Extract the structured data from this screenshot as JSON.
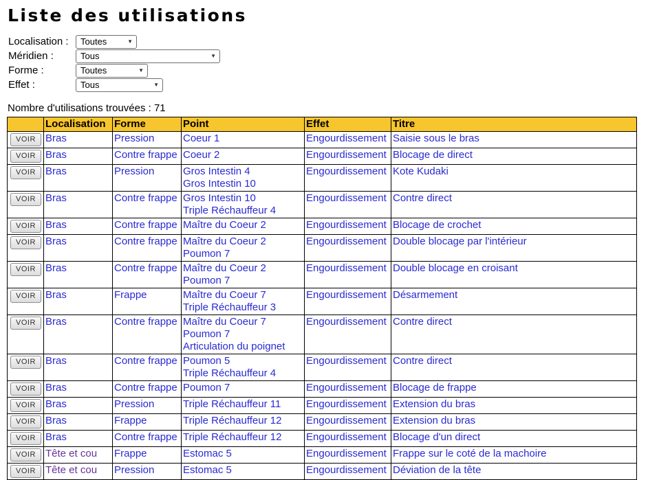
{
  "page": {
    "title": "Liste des utilisations"
  },
  "filters": [
    {
      "name": "localisation",
      "label": "Localisation :",
      "value": "Toutes"
    },
    {
      "name": "meridien",
      "label": "Méridien :",
      "value": "Tous"
    },
    {
      "name": "forme",
      "label": "Forme :",
      "value": "Toutes"
    },
    {
      "name": "effet",
      "label": "Effet :",
      "value": "Tous"
    }
  ],
  "results": {
    "count_label": "Nombre d'utilisations trouvées :",
    "count": "71"
  },
  "table": {
    "action_label": "VOIR",
    "headers": [
      "",
      "Localisation",
      "Forme",
      "Point",
      "Effet",
      "Titre"
    ],
    "rows": [
      {
        "localisation": "Bras",
        "forme": "Pression",
        "point": "Coeur 1",
        "effet": "Engourdissement",
        "titre": "Saisie sous le bras",
        "loc_visited": false
      },
      {
        "localisation": "Bras",
        "forme": "Contre frappe",
        "point": "Coeur 2",
        "effet": "Engourdissement",
        "titre": "Blocage de direct",
        "loc_visited": false
      },
      {
        "localisation": "Bras",
        "forme": "Pression",
        "point": "Gros Intestin 4\nGros Intestin 10",
        "effet": "Engourdissement",
        "titre": "Kote Kudaki",
        "loc_visited": false
      },
      {
        "localisation": "Bras",
        "forme": "Contre frappe",
        "point": "Gros Intestin 10\nTriple Réchauffeur 4",
        "effet": "Engourdissement",
        "titre": "Contre direct",
        "loc_visited": false
      },
      {
        "localisation": "Bras",
        "forme": "Contre frappe",
        "point": "Maître du Coeur 2",
        "effet": "Engourdissement",
        "titre": "Blocage de crochet",
        "loc_visited": false
      },
      {
        "localisation": "Bras",
        "forme": "Contre frappe",
        "point": "Maître du Coeur 2\nPoumon 7",
        "effet": "Engourdissement",
        "titre": "Double blocage par l'intérieur",
        "loc_visited": false
      },
      {
        "localisation": "Bras",
        "forme": "Contre frappe",
        "point": "Maître du Coeur 2\nPoumon 7",
        "effet": "Engourdissement",
        "titre": "Double blocage en croisant",
        "loc_visited": false
      },
      {
        "localisation": "Bras",
        "forme": "Frappe",
        "point": "Maître du Coeur 7\nTriple Réchauffeur 3",
        "effet": "Engourdissement",
        "titre": "Désarmement",
        "loc_visited": false
      },
      {
        "localisation": "Bras",
        "forme": "Contre frappe",
        "point": "Maître du Coeur 7\nPoumon 7\nArticulation du poignet",
        "effet": "Engourdissement",
        "titre": "Contre direct",
        "loc_visited": false
      },
      {
        "localisation": "Bras",
        "forme": "Contre frappe",
        "point": "Poumon 5\nTriple Réchauffeur 4",
        "effet": "Engourdissement",
        "titre": "Contre direct",
        "loc_visited": false
      },
      {
        "localisation": "Bras",
        "forme": "Contre frappe",
        "point": "Poumon 7",
        "effet": "Engourdissement",
        "titre": "Blocage de frappe",
        "loc_visited": false
      },
      {
        "localisation": "Bras",
        "forme": "Pression",
        "point": "Triple Réchauffeur 11",
        "effet": "Engourdissement",
        "titre": "Extension du bras",
        "loc_visited": false
      },
      {
        "localisation": "Bras",
        "forme": "Frappe",
        "point": "Triple Réchauffeur 12",
        "effet": "Engourdissement",
        "titre": "Extension du bras",
        "loc_visited": false
      },
      {
        "localisation": "Bras",
        "forme": "Contre frappe",
        "point": "Triple Réchauffeur 12",
        "effet": "Engourdissement",
        "titre": "Blocage d'un direct",
        "loc_visited": false
      },
      {
        "localisation": "Tête et cou",
        "forme": "Frappe",
        "point": "Estomac 5",
        "effet": "Engourdissement",
        "titre": "Frappe sur le coté de la machoire",
        "loc_visited": true
      },
      {
        "localisation": "Tête et cou",
        "forme": "Pression",
        "point": "Estomac 5",
        "effet": "Engourdissement",
        "titre": "Déviation de la tête",
        "loc_visited": true
      }
    ]
  },
  "colors": {
    "header_bg": "#F7C52D",
    "link": "#2A2AD2",
    "visited": "#663399",
    "border": "#000000"
  }
}
